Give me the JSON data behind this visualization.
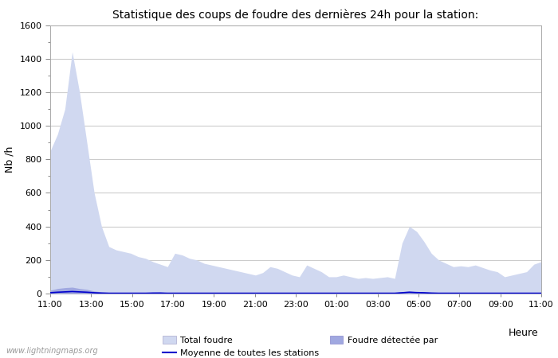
{
  "title": "Statistique des coups de foudre des dernières 24h pour la station:",
  "xlabel": "Heure",
  "ylabel": "Nb /h",
  "x_ticks": [
    "11:00",
    "13:00",
    "15:00",
    "17:00",
    "19:00",
    "21:00",
    "23:00",
    "01:00",
    "03:00",
    "05:00",
    "07:00",
    "09:00",
    "11:00"
  ],
  "ylim": [
    0,
    1600
  ],
  "yticks": [
    0,
    200,
    400,
    600,
    800,
    1000,
    1200,
    1400,
    1600
  ],
  "background_color": "#ffffff",
  "plot_bg_color": "#ffffff",
  "grid_color": "#cccccc",
  "fill_color_total": "#d0d8f0",
  "fill_color_detected": "#a0a8e0",
  "line_color": "#0000cc",
  "watermark": "www.lightningmaps.org",
  "legend_labels": [
    "Total foudre",
    "Moyenne de toutes les stations",
    "Foudre détectée par"
  ],
  "total_foudre": [
    850,
    950,
    1100,
    1440,
    1200,
    900,
    600,
    400,
    280,
    260,
    250,
    240,
    220,
    210,
    190,
    175,
    160,
    240,
    230,
    210,
    200,
    180,
    170,
    160,
    150,
    140,
    130,
    120,
    110,
    125,
    160,
    150,
    130,
    110,
    100,
    170,
    150,
    130,
    100,
    100,
    110,
    100,
    90,
    95,
    90,
    95,
    100,
    90,
    300,
    400,
    370,
    310,
    240,
    200,
    180,
    160,
    165,
    160,
    170,
    155,
    140,
    130,
    100,
    110,
    120,
    130,
    175,
    190
  ],
  "detected_foudre": [
    20,
    30,
    35,
    38,
    30,
    25,
    15,
    10,
    7,
    5,
    5,
    5,
    5,
    5,
    8,
    10,
    5,
    5,
    5,
    5,
    5,
    5,
    5,
    5,
    5,
    5,
    5,
    5,
    5,
    5,
    5,
    5,
    5,
    5,
    5,
    5,
    5,
    5,
    5,
    5,
    5,
    5,
    5,
    5,
    5,
    5,
    5,
    5,
    10,
    15,
    10,
    8,
    5,
    5,
    5,
    5,
    5,
    5,
    5,
    5,
    5,
    5,
    5,
    5,
    5,
    5,
    5,
    5
  ],
  "avg_line": [
    5,
    8,
    10,
    12,
    10,
    8,
    5,
    3,
    2,
    2,
    2,
    2,
    2,
    2,
    3,
    3,
    2,
    2,
    2,
    2,
    2,
    2,
    2,
    2,
    2,
    2,
    2,
    2,
    2,
    2,
    2,
    2,
    2,
    2,
    2,
    2,
    2,
    2,
    2,
    2,
    2,
    2,
    2,
    2,
    2,
    2,
    2,
    2,
    5,
    8,
    6,
    5,
    3,
    2,
    2,
    2,
    2,
    2,
    2,
    2,
    2,
    2,
    2,
    2,
    2,
    2,
    2,
    2
  ]
}
